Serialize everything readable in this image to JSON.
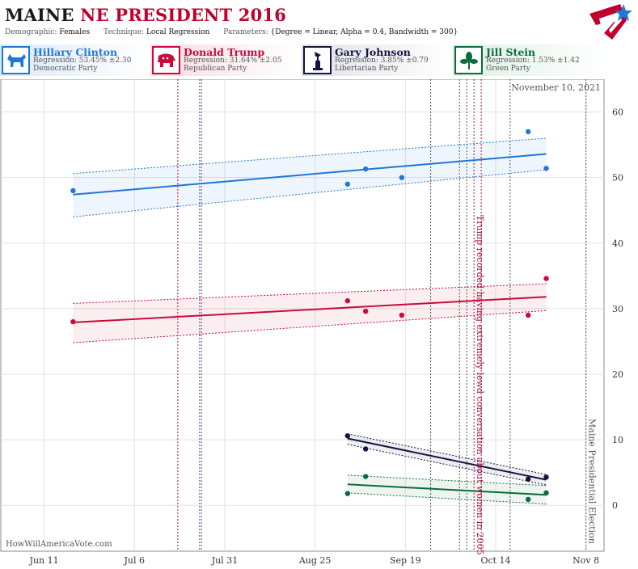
{
  "header": {
    "title_main": "MAINE",
    "title_sub": "NE PRESIDENT 2016",
    "params": [
      {
        "key": "Demographic:",
        "value": "Females"
      },
      {
        "key": "Technique:",
        "value": "Local Regression"
      },
      {
        "key": "Parameters:",
        "value": "{Degree = Linear, Alpha = 0.4, Bandwidth = 300}"
      }
    ]
  },
  "legend": [
    {
      "name": "Hillary Clinton",
      "regression": "Regression: 53.45% ±2.30",
      "party": "Democratic Party",
      "color": "#1f77d6",
      "icon": "donkey-icon"
    },
    {
      "name": "Donald Trump",
      "regression": "Regression: 31.64% ±2.05",
      "party": "Republican Party",
      "color": "#cc0a3a",
      "icon": "elephant-icon"
    },
    {
      "name": "Gary Johnson",
      "regression": "Regression: 3.85% ±0.79",
      "party": "Libertarian Party",
      "color": "#141440",
      "icon": "liberty-icon"
    },
    {
      "name": "Jill Stein",
      "regression": "Regression: 1.53% ±1.42",
      "party": "Green Party",
      "color": "#0b6b3a",
      "icon": "leaf-icon"
    }
  ],
  "datestamp": "November 10, 2021",
  "watermark": "HowWillAmericaVote.com",
  "chart_data": {
    "type": "scatter",
    "x_ticks": [
      "Jun 11",
      "Jul 6",
      "Jul 31",
      "Aug 25",
      "Sep 19",
      "Oct 14",
      "Nov 8"
    ],
    "x_tick_days": [
      0,
      25,
      50,
      75,
      100,
      125,
      150
    ],
    "ylim": [
      -7,
      65
    ],
    "y_ticks": [
      0,
      10,
      20,
      30,
      40,
      50,
      60
    ],
    "xlim_days": [
      -12,
      155
    ],
    "series": [
      {
        "name": "Hillary Clinton",
        "color": "#1f77d6",
        "points": [
          [
            8,
            48
          ],
          [
            84,
            49
          ],
          [
            89,
            51.3
          ],
          [
            99,
            50
          ],
          [
            134,
            57
          ],
          [
            139,
            51.4
          ]
        ],
        "fit_start": [
          8,
          47.4
        ],
        "fit_end": [
          139,
          53.6
        ],
        "ci_upper": [
          [
            8,
            50.6
          ],
          [
            139,
            56
          ]
        ],
        "ci_lower": [
          [
            8,
            44
          ],
          [
            139,
            51.2
          ]
        ]
      },
      {
        "name": "Donald Trump",
        "color": "#cc0a3a",
        "points": [
          [
            8,
            28
          ],
          [
            84,
            31.2
          ],
          [
            89,
            29.6
          ],
          [
            99,
            29
          ],
          [
            134,
            29
          ],
          [
            139,
            34.6
          ]
        ],
        "fit_start": [
          8,
          27.9
        ],
        "fit_end": [
          139,
          31.8
        ],
        "ci_upper": [
          [
            8,
            30.8
          ],
          [
            139,
            33.8
          ]
        ],
        "ci_lower": [
          [
            8,
            24.8
          ],
          [
            139,
            29.7
          ]
        ]
      },
      {
        "name": "Gary Johnson",
        "color": "#141440",
        "points": [
          [
            84,
            10.6
          ],
          [
            89,
            8.6
          ],
          [
            134,
            4
          ],
          [
            139,
            4.3
          ]
        ],
        "fit_start": [
          84,
          10.2
        ],
        "fit_end": [
          139,
          3.9
        ],
        "ci_upper": [
          [
            84,
            10.9
          ],
          [
            139,
            4.7
          ]
        ],
        "ci_lower": [
          [
            84,
            9.3
          ],
          [
            139,
            3.1
          ]
        ]
      },
      {
        "name": "Jill Stein",
        "color": "#0b6b3a",
        "points": [
          [
            84,
            1.8
          ],
          [
            89,
            4.4
          ],
          [
            134,
            0.9
          ],
          [
            139,
            1.9
          ]
        ],
        "fit_start": [
          84,
          3.2
        ],
        "fit_end": [
          139,
          1.6
        ],
        "ci_upper": [
          [
            84,
            4.6
          ],
          [
            139,
            3
          ]
        ],
        "ci_lower": [
          [
            84,
            1.9
          ],
          [
            139,
            0.2
          ]
        ]
      }
    ],
    "event_lines": [
      {
        "day": 37,
        "color": "#aa1144"
      },
      {
        "day": 43,
        "color": "#1f77d6"
      },
      {
        "day": 43.5,
        "color": "#aa1144"
      },
      {
        "day": 107,
        "color": "#555"
      },
      {
        "day": 115,
        "color": "#555"
      },
      {
        "day": 117,
        "color": "#555"
      },
      {
        "day": 119,
        "color": "#aa1144"
      },
      {
        "day": 121,
        "color": "#aa1144"
      },
      {
        "day": 129,
        "color": "#555"
      },
      {
        "day": 150,
        "color": "#555"
      }
    ],
    "annotations": [
      {
        "text": "Trump recorded having extremely lewd conversation about women in 2005",
        "day": 119,
        "color": "#aa1144"
      },
      {
        "text": "Maine Presidential Election",
        "day": 150,
        "color": "#555"
      }
    ]
  }
}
